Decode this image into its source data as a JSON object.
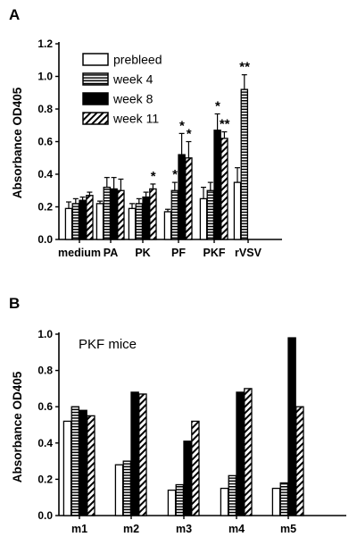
{
  "chart_data": [
    {
      "panel": "A",
      "type": "bar",
      "ylabel": "Absorbance OD405",
      "ylim": [
        0,
        1.2
      ],
      "yticks": [
        "0.0",
        "0.2",
        "0.4",
        "0.6",
        "0.8",
        "1.0",
        "1.2"
      ],
      "categories": [
        "medium",
        "PA",
        "PK",
        "PF",
        "PKF",
        "rVSV"
      ],
      "legend": "top-left",
      "series": [
        {
          "name": "prebleed",
          "pattern": "open",
          "values": [
            0.19,
            0.22,
            0.19,
            0.17,
            0.25,
            0.35
          ],
          "errors": [
            0.04,
            0.015,
            0.03,
            0.015,
            0.07,
            0.09
          ]
        },
        {
          "name": "week 4",
          "pattern": "horizontal-stripes",
          "values": [
            0.22,
            0.32,
            0.22,
            0.3,
            0.3,
            0.92
          ],
          "errors": [
            0.03,
            0.06,
            0.03,
            0.05,
            0.05,
            0.09
          ]
        },
        {
          "name": "week 8",
          "pattern": "solid",
          "values": [
            0.24,
            0.31,
            0.26,
            0.52,
            0.67,
            null
          ],
          "errors": [
            0.02,
            0.07,
            0.03,
            0.13,
            0.1,
            null
          ]
        },
        {
          "name": "week 11",
          "pattern": "diagonal-hatch",
          "values": [
            0.27,
            0.3,
            0.31,
            0.5,
            0.62,
            null
          ],
          "errors": [
            0.02,
            0.07,
            0.03,
            0.1,
            0.04,
            null
          ]
        }
      ],
      "significance": [
        {
          "category": "PK",
          "series": "week 11",
          "label": "*"
        },
        {
          "category": "PF",
          "series": "week 4",
          "label": "*"
        },
        {
          "category": "PF",
          "series": "week 8",
          "label": "*"
        },
        {
          "category": "PF",
          "series": "week 11",
          "label": "*"
        },
        {
          "category": "PKF",
          "series": "week 8",
          "label": "*"
        },
        {
          "category": "PKF",
          "series": "week 11",
          "label": "**"
        },
        {
          "category": "rVSV",
          "series": "week 4",
          "label": "**"
        }
      ]
    },
    {
      "panel": "B",
      "type": "bar",
      "annotation": "PKF mice",
      "ylabel": "Absorbance OD405",
      "ylim": [
        0,
        1.0
      ],
      "yticks": [
        "0.0",
        "0.2",
        "0.4",
        "0.6",
        "0.8",
        "1.0"
      ],
      "categories": [
        "m1",
        "m2",
        "m3",
        "m4",
        "m5"
      ],
      "series": [
        {
          "name": "prebleed",
          "pattern": "open",
          "values": [
            0.52,
            0.28,
            0.14,
            0.15,
            0.15
          ]
        },
        {
          "name": "week 4",
          "pattern": "horizontal-stripes",
          "values": [
            0.6,
            0.3,
            0.17,
            0.22,
            0.18
          ]
        },
        {
          "name": "week 8",
          "pattern": "solid",
          "values": [
            0.58,
            0.68,
            0.41,
            0.68,
            0.98
          ]
        },
        {
          "name": "week 11",
          "pattern": "diagonal-hatch",
          "values": [
            0.55,
            0.67,
            0.52,
            0.7,
            0.6
          ]
        }
      ]
    }
  ]
}
